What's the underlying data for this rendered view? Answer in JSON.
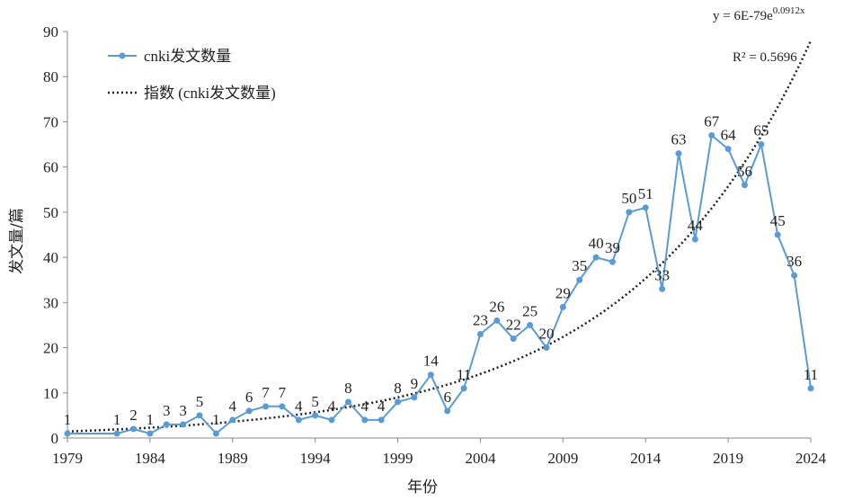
{
  "chart_data": {
    "type": "line",
    "xlabel": "年份",
    "ylabel": "发文量/篇",
    "xlim": [
      1979,
      2024
    ],
    "ylim": [
      0,
      90
    ],
    "yticks": [
      0,
      10,
      20,
      30,
      40,
      50,
      60,
      70,
      80,
      90
    ],
    "xticks": [
      1979,
      1984,
      1989,
      1994,
      1999,
      2004,
      2009,
      2014,
      2019,
      2024
    ],
    "grid": false,
    "legend_position": "top-left",
    "series": [
      {
        "name": "cnki发文数量",
        "color": "#5b9bd5",
        "points": [
          [
            1979,
            1
          ],
          [
            1982,
            1
          ],
          [
            1983,
            2
          ],
          [
            1984,
            1
          ],
          [
            1985,
            3
          ],
          [
            1986,
            3
          ],
          [
            1987,
            5
          ],
          [
            1988,
            1
          ],
          [
            1989,
            4
          ],
          [
            1990,
            6
          ],
          [
            1991,
            7
          ],
          [
            1992,
            7
          ],
          [
            1993,
            4
          ],
          [
            1994,
            5
          ],
          [
            1995,
            4
          ],
          [
            1996,
            8
          ],
          [
            1997,
            4
          ],
          [
            1998,
            4
          ],
          [
            1999,
            8
          ],
          [
            2000,
            9
          ],
          [
            2001,
            14
          ],
          [
            2002,
            6
          ],
          [
            2003,
            11
          ],
          [
            2004,
            23
          ],
          [
            2005,
            26
          ],
          [
            2006,
            22
          ],
          [
            2007,
            25
          ],
          [
            2008,
            20
          ],
          [
            2009,
            29
          ],
          [
            2010,
            35
          ],
          [
            2011,
            40
          ],
          [
            2012,
            39
          ],
          [
            2013,
            50
          ],
          [
            2014,
            51
          ],
          [
            2015,
            33
          ],
          [
            2016,
            63
          ],
          [
            2017,
            44
          ],
          [
            2018,
            67
          ],
          [
            2019,
            64
          ],
          [
            2020,
            56
          ],
          [
            2021,
            65
          ],
          [
            2022,
            45
          ],
          [
            2023,
            36
          ],
          [
            2024,
            11
          ]
        ]
      },
      {
        "name": "指数 (cnki发文数量)",
        "type": "trendline-exponential",
        "color": "#222222",
        "coefficient": 6e-79,
        "exponent": 0.0912
      }
    ],
    "annotations": {
      "equation": "y = 6E-79e",
      "equation_exponent": "0.0912x",
      "r_squared": "R² = 0.5696"
    }
  }
}
